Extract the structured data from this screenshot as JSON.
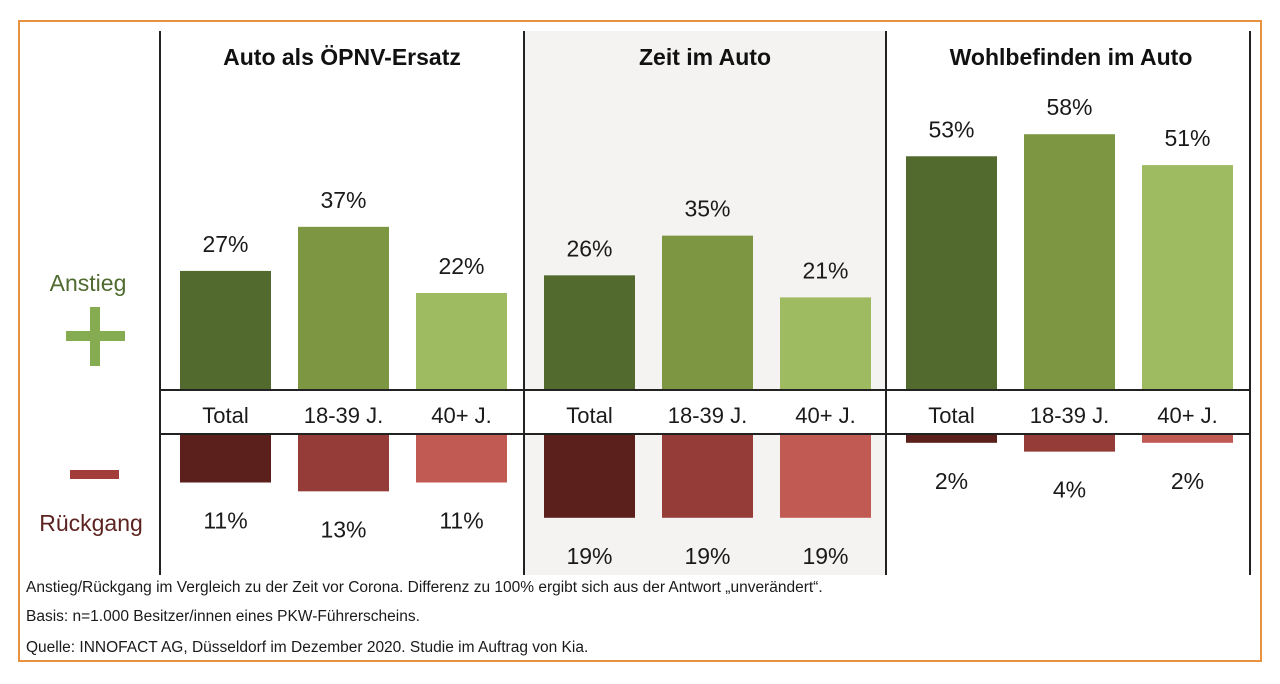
{
  "chart_data": {
    "type": "bar",
    "subtype": "diverging-grouped-panels",
    "categories": [
      "Total",
      "18-39 J.",
      "40+ J."
    ],
    "panels": [
      {
        "title": "Auto als ÖPNV-Ersatz",
        "highlighted": false,
        "increase": [
          27,
          37,
          22
        ],
        "decrease": [
          11,
          13,
          11
        ],
        "increase_labels": [
          "27%",
          "37%",
          "22%"
        ],
        "decrease_labels": [
          "11%",
          "13%",
          "11%"
        ]
      },
      {
        "title": "Zeit im Auto",
        "highlighted": true,
        "increase": [
          26,
          35,
          21
        ],
        "decrease": [
          19,
          19,
          19
        ],
        "increase_labels": [
          "26%",
          "35%",
          "21%"
        ],
        "decrease_labels": [
          "19%",
          "19%",
          "19%"
        ]
      },
      {
        "title": "Wohlbefinden im Auto",
        "highlighted": false,
        "increase": [
          53,
          58,
          51
        ],
        "decrease": [
          2,
          4,
          2
        ],
        "increase_labels": [
          "53%",
          "58%",
          "51%"
        ],
        "decrease_labels": [
          "2%",
          "4%",
          "2%"
        ]
      }
    ],
    "legend": {
      "increase_label": "Anstieg",
      "increase_symbol": "+",
      "decrease_label": "Rückgang",
      "decrease_symbol": "−"
    },
    "colors": {
      "increase": [
        "#536a2f",
        "#7d9642",
        "#9fbb62"
      ],
      "decrease": [
        "#5b201c",
        "#953b38",
        "#c25a54"
      ],
      "plus": "#86ac52",
      "minus": "#a23d3a",
      "highlight_bg": "#f4f3f2",
      "frame": "#e8913f"
    },
    "unit": "%",
    "title": "",
    "xlabel": "",
    "ylabel": ""
  },
  "footnotes": {
    "line1": "Anstieg/Rückgang im Vergleich zu der Zeit vor Corona. Differenz zu 100% ergibt sich aus der Antwort „unverändert“.",
    "line2": "Basis: n=1.000 Besitzer/innen eines PKW-Führerscheins.",
    "line3": "Quelle: INNOFACT AG, Düsseldorf im Dezember 2020. Studie im Auftrag von Kia."
  }
}
